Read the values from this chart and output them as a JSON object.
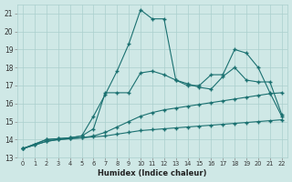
{
  "xlabel": "Humidex (Indice chaleur)",
  "bg_color": "#cfe8e6",
  "grid_color": "#aacfcd",
  "line_color": "#1a7070",
  "xlim": [
    -0.5,
    22.5
  ],
  "ylim": [
    13,
    21.5
  ],
  "xticks": [
    0,
    1,
    2,
    3,
    4,
    5,
    6,
    7,
    8,
    9,
    10,
    11,
    12,
    13,
    14,
    15,
    16,
    17,
    18,
    19,
    20,
    21,
    22
  ],
  "yticks": [
    13,
    14,
    15,
    16,
    17,
    18,
    19,
    20,
    21
  ],
  "line1_x": [
    0,
    1,
    2,
    3,
    4,
    5,
    6,
    7,
    8,
    9,
    10,
    11,
    12,
    13,
    14,
    15,
    16,
    17,
    18,
    19,
    20,
    21,
    22
  ],
  "line1_y": [
    13.5,
    13.7,
    13.9,
    14.0,
    14.05,
    14.1,
    14.15,
    14.2,
    14.3,
    14.4,
    14.5,
    14.55,
    14.6,
    14.65,
    14.7,
    14.75,
    14.8,
    14.85,
    14.9,
    14.95,
    15.0,
    15.05,
    15.1
  ],
  "line2_x": [
    0,
    1,
    2,
    3,
    4,
    5,
    6,
    7,
    8,
    9,
    10,
    11,
    12,
    13,
    14,
    15,
    16,
    17,
    18,
    19,
    20,
    21,
    22
  ],
  "line2_y": [
    13.5,
    13.7,
    13.9,
    14.0,
    14.05,
    14.1,
    14.2,
    14.4,
    14.7,
    15.0,
    15.3,
    15.5,
    15.65,
    15.75,
    15.85,
    15.95,
    16.05,
    16.15,
    16.25,
    16.35,
    16.45,
    16.55,
    16.6
  ],
  "line3_x": [
    0,
    2,
    3,
    4,
    5,
    6,
    7,
    8,
    9,
    10,
    11,
    12,
    13,
    14,
    15,
    16,
    17,
    18,
    19,
    20,
    21,
    22
  ],
  "line3_y": [
    13.5,
    14.0,
    14.05,
    14.1,
    14.2,
    14.6,
    16.6,
    16.6,
    16.6,
    17.7,
    17.8,
    17.6,
    17.3,
    17.1,
    16.9,
    16.8,
    17.5,
    18.0,
    17.3,
    17.2,
    17.2,
    15.4
  ],
  "line4_x": [
    0,
    2,
    3,
    4,
    5,
    6,
    7,
    8,
    9,
    10,
    11,
    12,
    13,
    14,
    15,
    16,
    17,
    18,
    19,
    20,
    21,
    22
  ],
  "line4_y": [
    13.5,
    14.0,
    14.05,
    14.1,
    14.2,
    15.3,
    16.5,
    17.8,
    19.3,
    21.2,
    20.7,
    20.7,
    17.3,
    17.0,
    17.0,
    17.6,
    17.6,
    19.0,
    18.8,
    18.0,
    16.6,
    15.3
  ]
}
